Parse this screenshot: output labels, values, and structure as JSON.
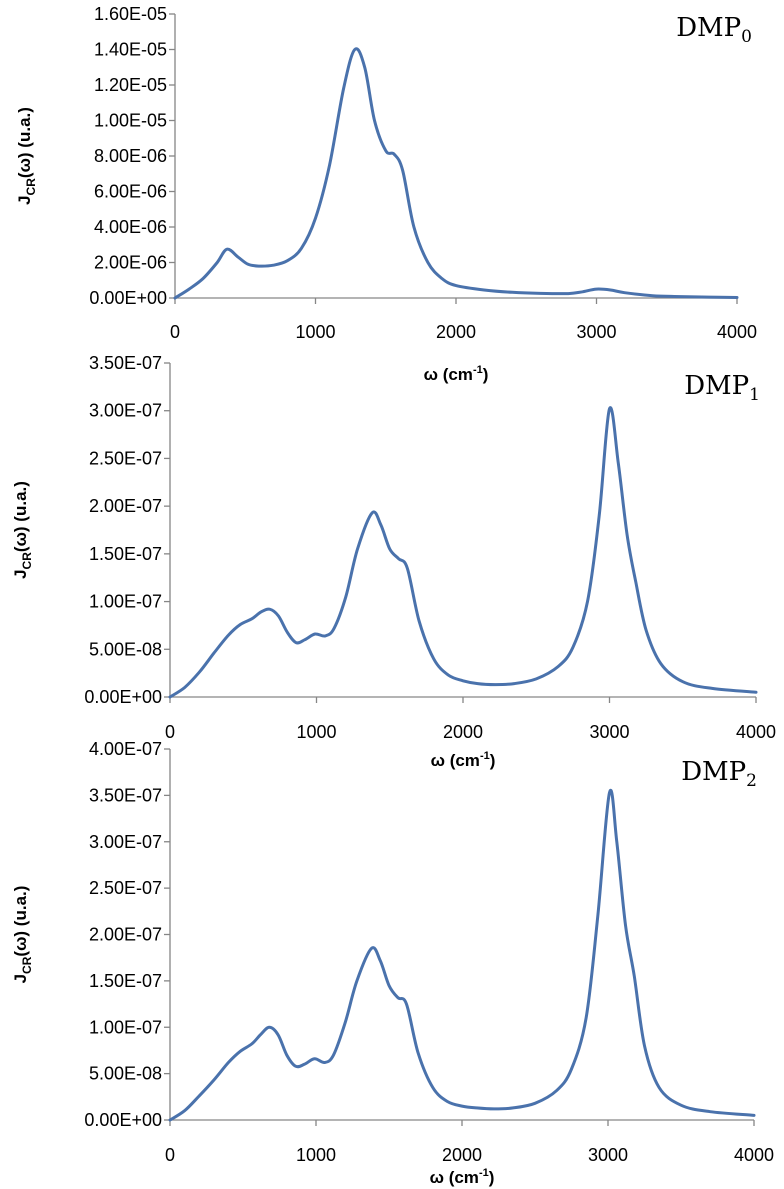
{
  "chart_data": [
    {
      "type": "line",
      "panel_label": "DMP",
      "panel_label_sub": "0",
      "xlabel_main": "ω (cm",
      "xlabel_sup": "-1",
      "xlabel_end": ")",
      "ylabel_main": "J",
      "ylabel_sub": "CR",
      "ylabel_rest": "(ω) (u.a.)",
      "xlim": [
        0,
        4000
      ],
      "ylim": [
        0,
        1.6e-05
      ],
      "x_ticks": [
        0,
        1000,
        2000,
        3000,
        4000
      ],
      "x_tick_labels": [
        "0",
        "1000",
        "2000",
        "3000",
        "4000"
      ],
      "y_ticks": [
        0,
        2e-06,
        4e-06,
        6e-06,
        8e-06,
        1e-05,
        1.2e-05,
        1.4e-05,
        1.6e-05
      ],
      "y_tick_labels": [
        "0.00E+00",
        "2.00E-06",
        "4.00E-06",
        "6.00E-06",
        "8.00E-06",
        "1.00E-05",
        "1.20E-05",
        "1.40E-05",
        "1.60E-05"
      ],
      "grid": false,
      "color": "#4A72AC",
      "series": [
        {
          "x": [
            0,
            100,
            200,
            300,
            370,
            450,
            520,
            600,
            700,
            800,
            900,
            1000,
            1100,
            1200,
            1280,
            1350,
            1420,
            1500,
            1560,
            1620,
            1700,
            1800,
            1900,
            2000,
            2200,
            2400,
            2600,
            2800,
            2900,
            3000,
            3100,
            3200,
            3400,
            3600,
            3800,
            4000
          ],
          "y": [
            0,
            5e-07,
            1.1e-06,
            2e-06,
            2.75e-06,
            2.3e-06,
            1.9e-06,
            1.8e-06,
            1.85e-06,
            2.1e-06,
            2.8e-06,
            4.5e-06,
            7.5e-06,
            1.18e-05,
            1.4e-05,
            1.3e-05,
            1e-05,
            8.3e-06,
            8.1e-06,
            7.2e-06,
            4e-06,
            2e-06,
            1.1e-06,
            7e-07,
            4.5e-07,
            3.2e-07,
            2.6e-07,
            2.5e-07,
            3.5e-07,
            5e-07,
            4.5e-07,
            3e-07,
            1.3e-07,
            8e-08,
            5e-08,
            3e-08
          ]
        }
      ]
    },
    {
      "type": "line",
      "panel_label": "DMP",
      "panel_label_sub": "1",
      "xlabel_main": "ω (cm",
      "xlabel_sup": "-1",
      "xlabel_end": ")",
      "ylabel_main": "J",
      "ylabel_sub": "CR",
      "ylabel_rest": "(ω) (u.a.)",
      "xlim": [
        0,
        4000
      ],
      "ylim": [
        0,
        3.5e-07
      ],
      "x_ticks": [
        0,
        1000,
        2000,
        3000,
        4000
      ],
      "x_tick_labels": [
        "0",
        "1000",
        "2000",
        "3000",
        "4000"
      ],
      "y_ticks": [
        0,
        5e-08,
        1e-07,
        1.5e-07,
        2e-07,
        2.5e-07,
        3e-07,
        3.5e-07
      ],
      "y_tick_labels": [
        "0.00E+00",
        "5.00E-08",
        "1.00E-07",
        "1.50E-07",
        "2.00E-07",
        "2.50E-07",
        "3.00E-07",
        "3.50E-07"
      ],
      "grid": false,
      "color": "#4A72AC",
      "series": [
        {
          "x": [
            0,
            100,
            200,
            300,
            400,
            480,
            560,
            620,
            680,
            740,
            800,
            860,
            920,
            990,
            1060,
            1120,
            1200,
            1280,
            1380,
            1440,
            1500,
            1560,
            1620,
            1700,
            1800,
            1900,
            2000,
            2100,
            2220,
            2350,
            2500,
            2650,
            2750,
            2850,
            2930,
            3000,
            3060,
            3120,
            3180,
            3250,
            3350,
            3500,
            3700,
            4000
          ],
          "y": [
            0,
            1e-08,
            2.6e-08,
            4.6e-08,
            6.5e-08,
            7.6e-08,
            8.2e-08,
            8.9e-08,
            9.2e-08,
            8.5e-08,
            6.8e-08,
            5.7e-08,
            6e-08,
            6.6e-08,
            6.4e-08,
            7.2e-08,
            1.05e-07,
            1.55e-07,
            1.93e-07,
            1.8e-07,
            1.55e-07,
            1.45e-07,
            1.35e-07,
            8e-08,
            4e-08,
            2.3e-08,
            1.7e-08,
            1.4e-08,
            1.3e-08,
            1.4e-08,
            1.9e-08,
            3.2e-08,
            5.2e-08,
            1e-07,
            1.9e-07,
            3.02e-07,
            2.45e-07,
            1.7e-07,
            1.2e-07,
            7e-08,
            3.5e-08,
            1.6e-08,
            9e-09,
            5e-09
          ]
        }
      ]
    },
    {
      "type": "line",
      "panel_label": "DMP",
      "panel_label_sub": "2",
      "xlabel_main": "ω (cm",
      "xlabel_sup": "-1",
      "xlabel_end": ")",
      "ylabel_main": "J",
      "ylabel_sub": "CR",
      "ylabel_rest": "(ω) (u.a.)",
      "xlim": [
        0,
        4000
      ],
      "ylim": [
        0,
        4e-07
      ],
      "x_ticks": [
        0,
        1000,
        2000,
        3000,
        4000
      ],
      "x_tick_labels": [
        "0",
        "1000",
        "2000",
        "3000",
        "4000"
      ],
      "y_ticks": [
        0,
        5e-08,
        1e-07,
        1.5e-07,
        2e-07,
        2.5e-07,
        3e-07,
        3.5e-07,
        4e-07
      ],
      "y_tick_labels": [
        "0.00E+00",
        "5.00E-08",
        "1.00E-07",
        "1.50E-07",
        "2.00E-07",
        "2.50E-07",
        "3.00E-07",
        "3.50E-07",
        "4.00E-07"
      ],
      "grid": false,
      "color": "#4A72AC",
      "series": [
        {
          "x": [
            0,
            100,
            200,
            300,
            400,
            480,
            560,
            620,
            680,
            740,
            800,
            860,
            920,
            990,
            1060,
            1120,
            1200,
            1280,
            1380,
            1440,
            1500,
            1560,
            1620,
            1700,
            1800,
            1900,
            2000,
            2100,
            2220,
            2350,
            2500,
            2650,
            2750,
            2850,
            2930,
            3010,
            3060,
            3120,
            3180,
            3250,
            3350,
            3500,
            3700,
            4000
          ],
          "y": [
            0,
            1e-08,
            2.6e-08,
            4.3e-08,
            6.2e-08,
            7.4e-08,
            8.2e-08,
            9.2e-08,
            1e-07,
            9.2e-08,
            7e-08,
            5.8e-08,
            6e-08,
            6.6e-08,
            6.2e-08,
            7e-08,
            1.05e-07,
            1.5e-07,
            1.85e-07,
            1.72e-07,
            1.45e-07,
            1.32e-07,
            1.25e-07,
            7.2e-08,
            3.5e-08,
            2e-08,
            1.5e-08,
            1.3e-08,
            1.2e-08,
            1.3e-08,
            1.8e-08,
            3.2e-08,
            5.5e-08,
            1.1e-07,
            2.2e-07,
            3.53e-07,
            3e-07,
            2.1e-07,
            1.55e-07,
            8e-08,
            3.5e-08,
            1.6e-08,
            9e-09,
            5e-09
          ]
        }
      ]
    }
  ]
}
